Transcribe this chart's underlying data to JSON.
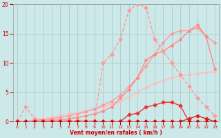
{
  "background_color": "#cce8e8",
  "grid_color": "#aacccc",
  "xlabel": "Vent moyen/en rafales ( km/h )",
  "xlim": [
    -0.5,
    23.5
  ],
  "ylim": [
    0,
    20
  ],
  "yticks": [
    0,
    5,
    10,
    15,
    20
  ],
  "xticks": [
    0,
    1,
    2,
    3,
    4,
    5,
    6,
    7,
    8,
    9,
    10,
    11,
    12,
    13,
    14,
    15,
    16,
    17,
    18,
    19,
    20,
    21,
    22,
    23
  ],
  "line_linear_light": {
    "x": [
      0,
      1,
      2,
      3,
      4,
      5,
      6,
      7,
      8,
      9,
      10,
      11,
      12,
      13,
      14,
      15,
      16,
      17,
      18,
      19,
      20,
      21,
      22,
      23
    ],
    "y": [
      0,
      0,
      0.3,
      0.5,
      0.7,
      1.0,
      1.3,
      1.5,
      1.8,
      2.1,
      2.5,
      3.0,
      3.5,
      4.2,
      5.0,
      5.8,
      6.5,
      7.0,
      7.5,
      7.8,
      8.0,
      8.2,
      8.4,
      8.5
    ],
    "color": "#ffbbbb",
    "linewidth": 1.0,
    "markersize": 2.0
  },
  "line_medium": {
    "x": [
      0,
      1,
      2,
      3,
      4,
      5,
      6,
      7,
      8,
      9,
      10,
      11,
      12,
      13,
      14,
      15,
      16,
      17,
      18,
      19,
      20,
      21,
      22,
      23
    ],
    "y": [
      0,
      0,
      0.2,
      0.3,
      0.5,
      0.7,
      1.0,
      1.3,
      1.7,
      2.2,
      2.8,
      3.5,
      4.5,
      6.0,
      7.5,
      9.5,
      11.5,
      13.5,
      15.0,
      15.5,
      15.5,
      16.0,
      14.5,
      13.5
    ],
    "color": "#ff9999",
    "linewidth": 1.0,
    "markersize": 2.0
  },
  "line_salmon": {
    "x": [
      0,
      1,
      2,
      3,
      4,
      5,
      6,
      7,
      8,
      9,
      10,
      11,
      12,
      13,
      14,
      15,
      16,
      17,
      18,
      19,
      20,
      21,
      22,
      23
    ],
    "y": [
      0,
      0,
      0,
      0.1,
      0.2,
      0.3,
      0.5,
      0.7,
      1.0,
      1.3,
      1.8,
      2.5,
      4.0,
      5.5,
      7.5,
      10.5,
      11.5,
      12.0,
      13.0,
      14.0,
      15.5,
      16.5,
      14.5,
      9.0
    ],
    "color": "#ff8888",
    "linewidth": 1.0,
    "markersize": 2.0
  },
  "line_pink_peak": {
    "x": [
      0,
      1,
      2,
      3,
      4,
      5,
      6,
      7,
      8,
      9,
      10,
      11,
      12,
      13,
      14,
      15,
      16,
      17,
      18,
      19,
      20,
      21,
      22,
      23
    ],
    "y": [
      0,
      2.5,
      0.5,
      0.3,
      0.3,
      0.3,
      0.2,
      0.2,
      0.2,
      0.1,
      10.0,
      11.5,
      14.0,
      19.0,
      20.0,
      19.5,
      14.0,
      12.0,
      10.0,
      8.0,
      6.0,
      4.0,
      2.5,
      1.0
    ],
    "color": "#ff9999",
    "linewidth": 1.0,
    "markersize": 2.5,
    "linestyle": "--"
  },
  "line_red_low": {
    "x": [
      0,
      1,
      2,
      3,
      4,
      5,
      6,
      7,
      8,
      9,
      10,
      11,
      12,
      13,
      14,
      15,
      16,
      17,
      18,
      19,
      20,
      21,
      22,
      23
    ],
    "y": [
      0,
      0,
      0,
      0,
      0,
      0,
      0,
      0,
      0,
      0,
      0,
      0,
      0,
      1.2,
      1.4,
      2.5,
      2.8,
      3.3,
      3.3,
      2.7,
      0,
      0,
      0,
      0
    ],
    "color": "#ee3333",
    "linewidth": 1.0,
    "markersize": 2.5
  },
  "line_red_hump": {
    "x": [
      0,
      1,
      2,
      3,
      4,
      5,
      6,
      7,
      8,
      9,
      10,
      11,
      12,
      13,
      14,
      15,
      16,
      17,
      18,
      19,
      20,
      21,
      22,
      23
    ],
    "y": [
      0,
      0,
      0,
      0,
      0,
      0,
      0,
      0,
      0,
      0,
      0,
      0,
      0,
      0,
      0,
      0,
      0,
      0,
      0,
      0,
      0.5,
      1.0,
      0.5,
      0
    ],
    "color": "#dd2222",
    "linewidth": 1.0,
    "markersize": 2.5
  },
  "line_red_flat": {
    "x": [
      0,
      1,
      2,
      3,
      4,
      5,
      6,
      7,
      8,
      9,
      10,
      11,
      12,
      13,
      14,
      15,
      16,
      17,
      18,
      19,
      20,
      21,
      22,
      23
    ],
    "y": [
      0,
      0,
      0,
      0,
      0,
      0,
      0,
      0,
      0,
      0,
      0,
      0,
      0,
      0,
      0,
      0,
      0,
      0,
      0,
      0,
      0,
      0,
      0,
      0
    ],
    "color": "#cc1111",
    "linewidth": 1.0,
    "markersize": 2.5
  }
}
